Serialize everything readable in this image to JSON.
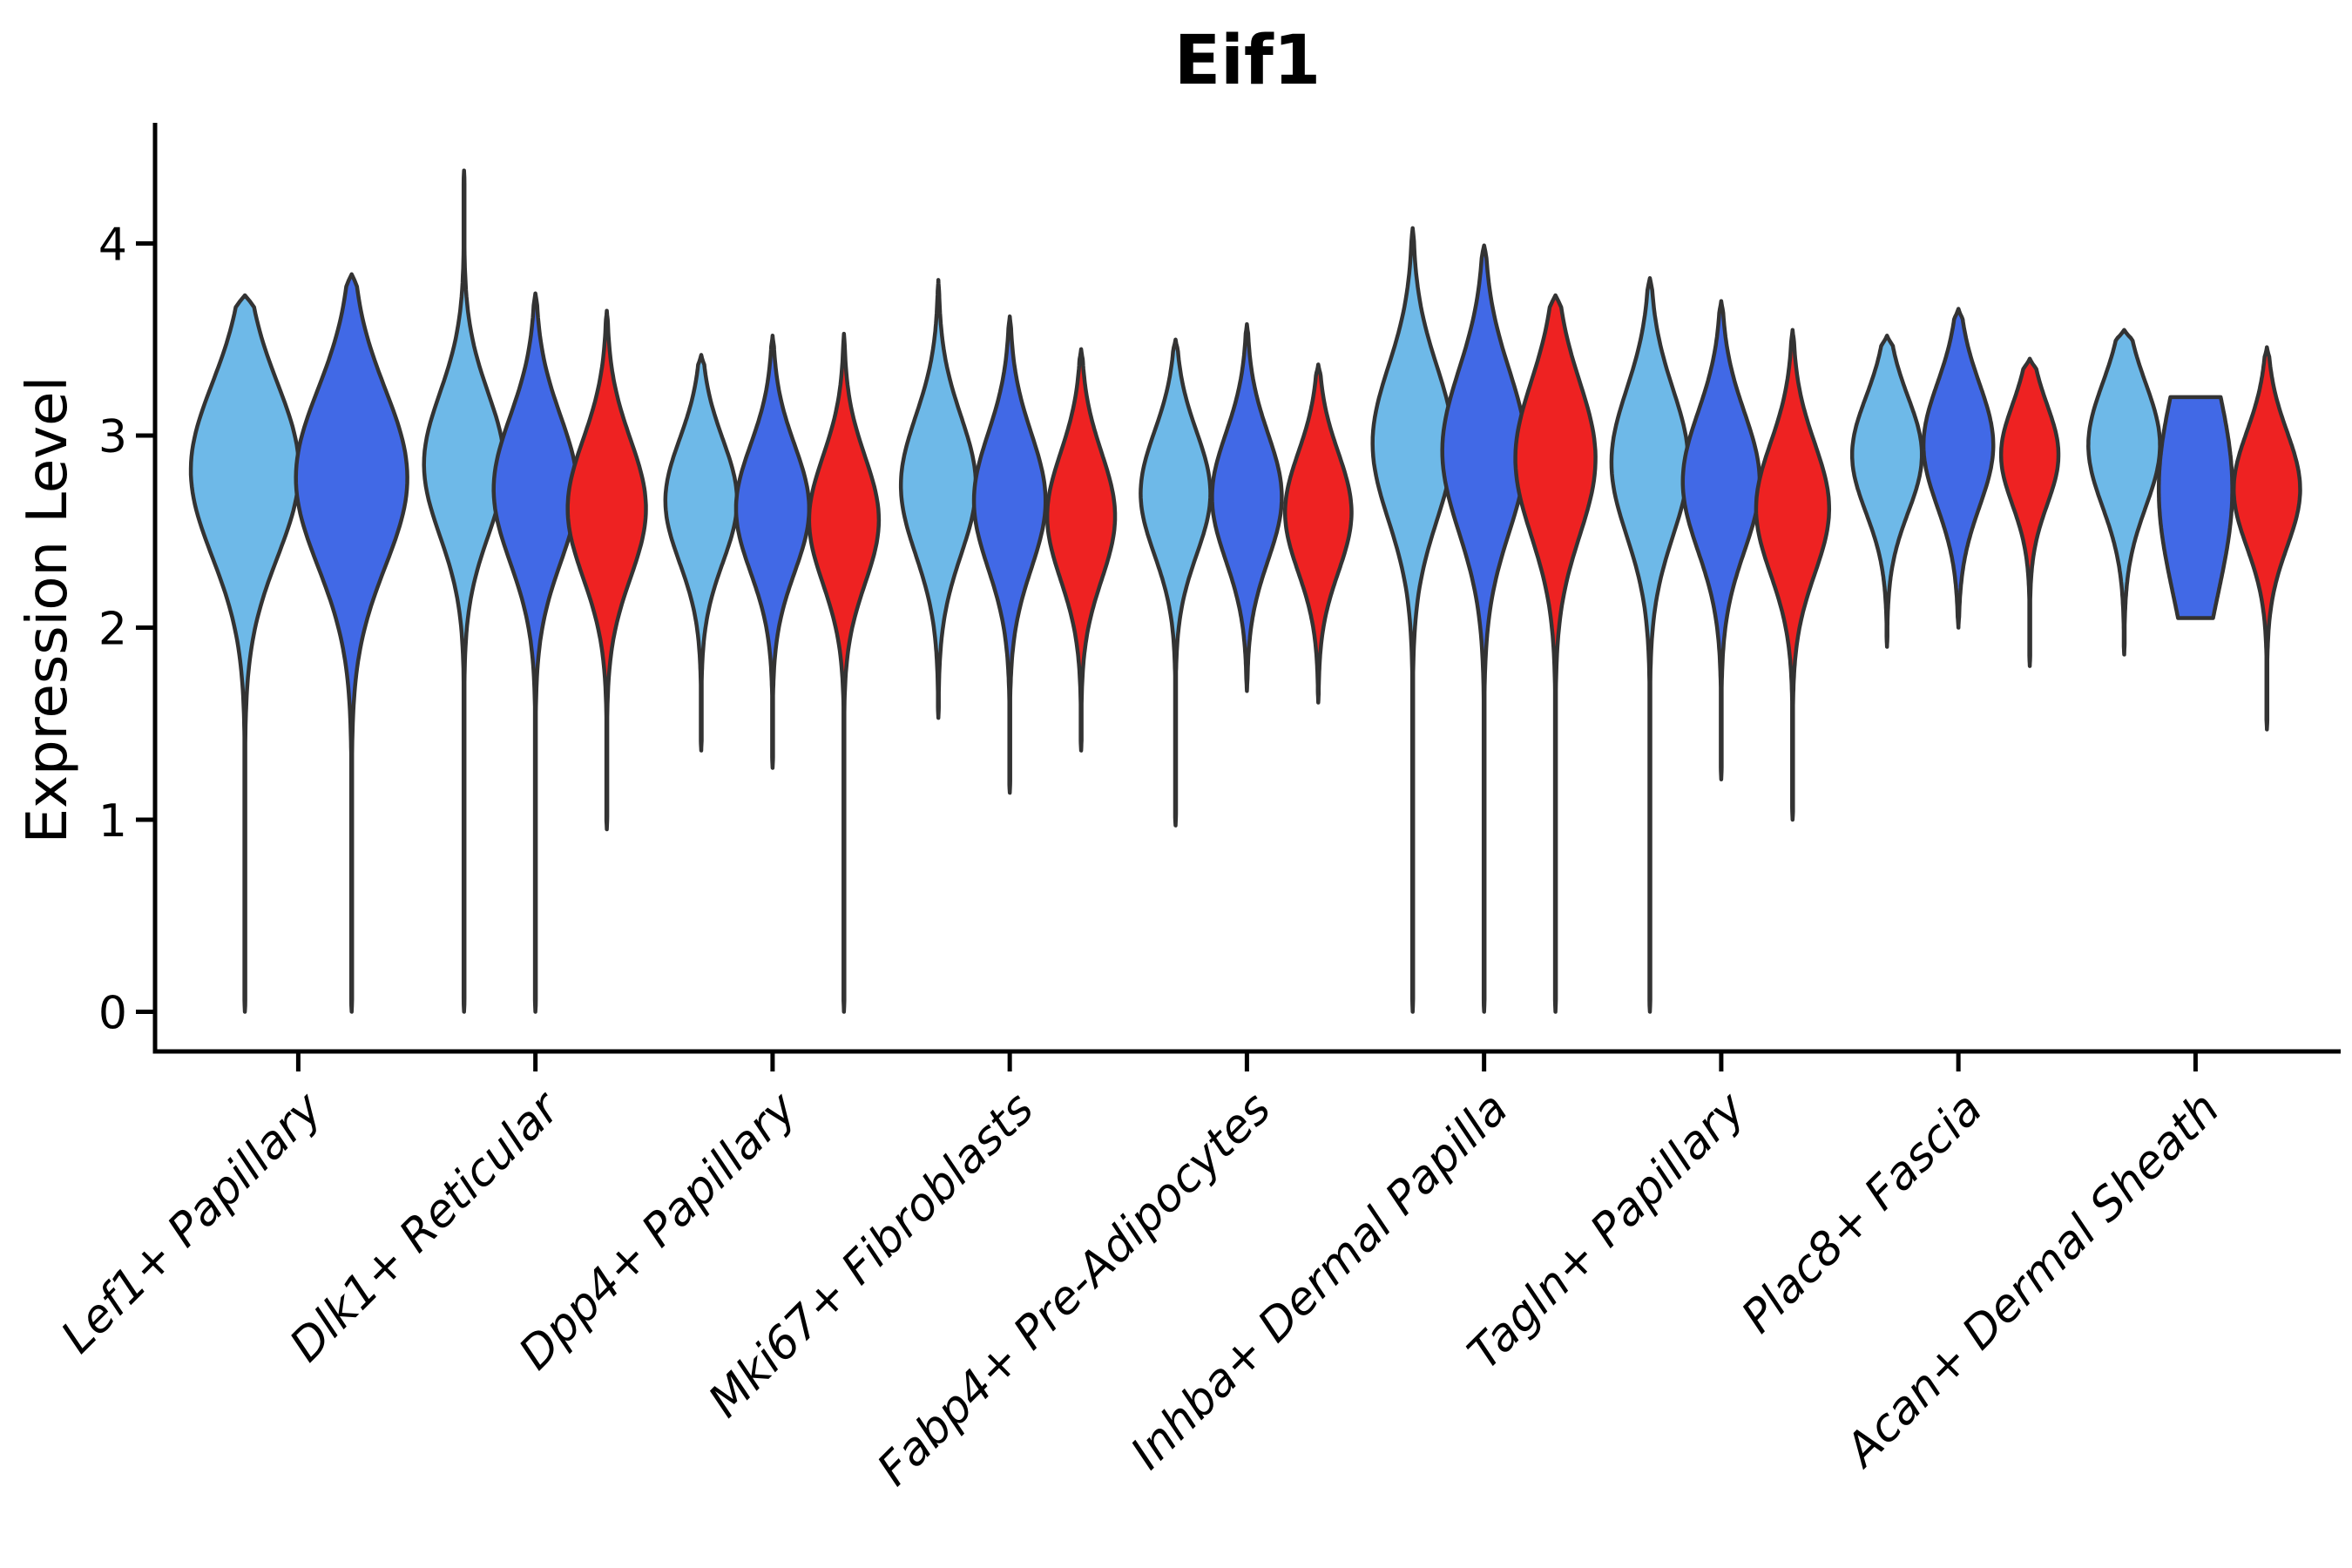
{
  "title": "Eif1",
  "chart_data": {
    "type": "violin",
    "title": "Eif1",
    "xlabel": "",
    "ylabel": "Expression Level",
    "yticks": [
      0,
      1,
      2,
      3,
      4
    ],
    "ylim": [
      -0.21,
      4.63
    ],
    "grid": false,
    "legend_position": "none",
    "background": "#ffffff",
    "outline_color": "#333333",
    "axis_color": "#000000",
    "categories": [
      "Lef1+ Papillary",
      "Dlk1+ Reticular",
      "Dpp4+ Papillary",
      "Mki67+ Fibroblasts",
      "Fabp4+ Pre-Adipocytes",
      "Inhba+ Dermal Papilla",
      "Tagln+ Papillary",
      "Plac8+ Fascia",
      "Acan+ Dermal Sheath"
    ],
    "splits": [
      {
        "name": "split-lightblue",
        "color": "#6EB9E8"
      },
      {
        "name": "split-blue",
        "color": "#4169E6"
      },
      {
        "name": "split-red",
        "color": "#EE2222"
      }
    ],
    "violins": [
      {
        "category_index": 0,
        "split": "split-lightblue",
        "offset": -0.225,
        "halfwidth": 0.228,
        "min": 0,
        "max": 3.73,
        "mode": 2.82,
        "sigma": 0.45,
        "flat_top": false,
        "flat_bottom": false
      },
      {
        "category_index": 0,
        "split": "split-blue",
        "offset": 0.225,
        "halfwidth": 0.235,
        "min": 0,
        "max": 3.84,
        "mode": 2.78,
        "sigma": 0.46,
        "flat_top": false,
        "flat_bottom": false
      },
      {
        "category_index": 1,
        "split": "split-lightblue",
        "offset": -0.301,
        "halfwidth": 0.169,
        "min": 0,
        "max": 4.38,
        "mode": 2.85,
        "sigma": 0.37,
        "flat_top": false,
        "flat_bottom": false
      },
      {
        "category_index": 1,
        "split": "split-blue",
        "offset": 0.0,
        "halfwidth": 0.176,
        "min": 0,
        "max": 3.74,
        "mode": 2.72,
        "sigma": 0.38,
        "flat_top": false,
        "flat_bottom": false
      },
      {
        "category_index": 1,
        "split": "split-red",
        "offset": 0.301,
        "halfwidth": 0.165,
        "min": 0.95,
        "max": 3.65,
        "mode": 2.62,
        "sigma": 0.36,
        "flat_top": false,
        "flat_bottom": false
      },
      {
        "category_index": 2,
        "split": "split-lightblue",
        "offset": -0.301,
        "halfwidth": 0.151,
        "min": 1.36,
        "max": 3.42,
        "mode": 2.66,
        "sigma": 0.32,
        "flat_top": false,
        "flat_bottom": false
      },
      {
        "category_index": 2,
        "split": "split-blue",
        "offset": 0.0,
        "halfwidth": 0.154,
        "min": 1.27,
        "max": 3.52,
        "mode": 2.62,
        "sigma": 0.33,
        "flat_top": false,
        "flat_bottom": false
      },
      {
        "category_index": 2,
        "split": "split-red",
        "offset": 0.301,
        "halfwidth": 0.147,
        "min": 0,
        "max": 3.53,
        "mode": 2.56,
        "sigma": 0.33,
        "flat_top": false,
        "flat_bottom": false
      },
      {
        "category_index": 3,
        "split": "split-lightblue",
        "offset": -0.301,
        "halfwidth": 0.158,
        "min": 1.53,
        "max": 3.81,
        "mode": 2.74,
        "sigma": 0.36,
        "flat_top": false,
        "flat_bottom": false
      },
      {
        "category_index": 3,
        "split": "split-blue",
        "offset": 0.0,
        "halfwidth": 0.151,
        "min": 1.14,
        "max": 3.62,
        "mode": 2.66,
        "sigma": 0.35,
        "flat_top": false,
        "flat_bottom": false
      },
      {
        "category_index": 3,
        "split": "split-red",
        "offset": 0.301,
        "halfwidth": 0.143,
        "min": 1.36,
        "max": 3.45,
        "mode": 2.58,
        "sigma": 0.33,
        "flat_top": false,
        "flat_bottom": false
      },
      {
        "category_index": 4,
        "split": "split-lightblue",
        "offset": -0.301,
        "halfwidth": 0.147,
        "min": 0.97,
        "max": 3.5,
        "mode": 2.7,
        "sigma": 0.32,
        "flat_top": false,
        "flat_bottom": false
      },
      {
        "category_index": 4,
        "split": "split-blue",
        "offset": 0.0,
        "halfwidth": 0.147,
        "min": 1.67,
        "max": 3.58,
        "mode": 2.68,
        "sigma": 0.33,
        "flat_top": false,
        "flat_bottom": false
      },
      {
        "category_index": 4,
        "split": "split-red",
        "offset": 0.301,
        "halfwidth": 0.14,
        "min": 1.61,
        "max": 3.37,
        "mode": 2.6,
        "sigma": 0.31,
        "flat_top": false,
        "flat_bottom": false
      },
      {
        "category_index": 5,
        "split": "split-lightblue",
        "offset": -0.301,
        "halfwidth": 0.169,
        "min": 0,
        "max": 4.08,
        "mode": 2.96,
        "sigma": 0.4,
        "flat_top": false,
        "flat_bottom": false
      },
      {
        "category_index": 5,
        "split": "split-blue",
        "offset": 0.0,
        "halfwidth": 0.176,
        "min": 0,
        "max": 3.99,
        "mode": 2.92,
        "sigma": 0.42,
        "flat_top": false,
        "flat_bottom": false
      },
      {
        "category_index": 5,
        "split": "split-red",
        "offset": 0.301,
        "halfwidth": 0.169,
        "min": 0,
        "max": 3.73,
        "mode": 2.88,
        "sigma": 0.4,
        "flat_top": false,
        "flat_bottom": false
      },
      {
        "category_index": 6,
        "split": "split-lightblue",
        "offset": -0.301,
        "halfwidth": 0.162,
        "min": 0,
        "max": 3.82,
        "mode": 2.86,
        "sigma": 0.38,
        "flat_top": false,
        "flat_bottom": false
      },
      {
        "category_index": 6,
        "split": "split-blue",
        "offset": 0.0,
        "halfwidth": 0.162,
        "min": 1.21,
        "max": 3.7,
        "mode": 2.76,
        "sigma": 0.36,
        "flat_top": false,
        "flat_bottom": false
      },
      {
        "category_index": 6,
        "split": "split-red",
        "offset": 0.301,
        "halfwidth": 0.154,
        "min": 1.0,
        "max": 3.55,
        "mode": 2.62,
        "sigma": 0.34,
        "flat_top": false,
        "flat_bottom": false
      },
      {
        "category_index": 7,
        "split": "split-lightblue",
        "offset": -0.301,
        "halfwidth": 0.147,
        "min": 1.9,
        "max": 3.52,
        "mode": 2.9,
        "sigma": 0.3,
        "flat_top": false,
        "flat_bottom": false
      },
      {
        "category_index": 7,
        "split": "split-blue",
        "offset": 0.0,
        "halfwidth": 0.147,
        "min": 2.0,
        "max": 3.66,
        "mode": 2.95,
        "sigma": 0.32,
        "flat_top": false,
        "flat_bottom": false
      },
      {
        "category_index": 7,
        "split": "split-red",
        "offset": 0.301,
        "halfwidth": 0.121,
        "min": 1.8,
        "max": 3.4,
        "mode": 2.9,
        "sigma": 0.26,
        "flat_top": false,
        "flat_bottom": false
      },
      {
        "category_index": 8,
        "split": "split-lightblue",
        "offset": -0.301,
        "halfwidth": 0.151,
        "min": 1.86,
        "max": 3.55,
        "mode": 2.95,
        "sigma": 0.32,
        "flat_top": false,
        "flat_bottom": false
      },
      {
        "category_index": 8,
        "split": "split-blue",
        "offset": 0.0,
        "halfwidth": 0.155,
        "min": 2.05,
        "max": 3.2,
        "mode": 2.72,
        "sigma": 0.55,
        "flat_top": true,
        "flat_bottom": true
      },
      {
        "category_index": 8,
        "split": "split-red",
        "offset": 0.301,
        "halfwidth": 0.14,
        "min": 1.47,
        "max": 3.46,
        "mode": 2.72,
        "sigma": 0.3,
        "flat_top": false,
        "flat_bottom": false
      }
    ]
  }
}
